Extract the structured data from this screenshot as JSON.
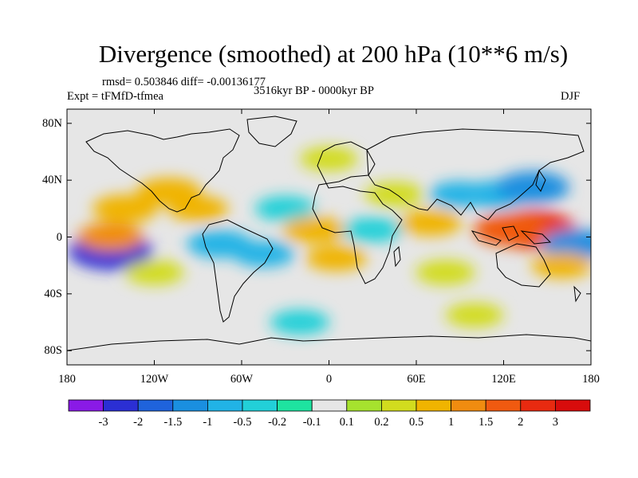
{
  "title": "Divergence (smoothed) at 200 hPa (10**6 m/s)",
  "stats": "rmsd= 0.503846 diff= -0.00136177",
  "period": "3516kyr BP - 0000kyr BP",
  "experiment": "Expt = tFMfD-tfmea",
  "season": "DJF",
  "axes": {
    "lon_ticks": [
      "180",
      "120W",
      "60W",
      "0",
      "60E",
      "120E",
      "180"
    ],
    "lat_ticks": [
      "80N",
      "40N",
      "0",
      "40S",
      "80S"
    ]
  },
  "colorbar": {
    "labels": [
      "-3",
      "-2",
      "-1.5",
      "-1",
      "-0.5",
      "-0.2",
      "-0.1",
      "0.1",
      "0.2",
      "0.5",
      "1",
      "1.5",
      "2",
      "3"
    ],
    "colors": [
      "#8a1ae6",
      "#2b2fd4",
      "#1f63dc",
      "#1a8fe0",
      "#21b3e6",
      "#22d0d8",
      "#1ee3a0",
      "#e6e6e6",
      "#a6e22e",
      "#d2dc1e",
      "#f0b400",
      "#f08c10",
      "#f05a10",
      "#e82a10",
      "#d80c0c"
    ]
  },
  "chart_data": {
    "type": "heatmap",
    "title": "Divergence (smoothed) at 200 hPa (10**6 m/s)",
    "x_range_deg": [
      -180,
      180
    ],
    "y_range_deg": [
      -90,
      90
    ],
    "levels": [
      -3,
      -2,
      -1.5,
      -1,
      -0.5,
      -0.2,
      -0.1,
      0.1,
      0.2,
      0.5,
      1,
      1.5,
      2,
      3
    ],
    "field_blobs": [
      {
        "lon": -150,
        "lat": -10,
        "value": -2.3
      },
      {
        "lon": -140,
        "lat": 20,
        "value": 0.9
      },
      {
        "lon": -150,
        "lat": 0,
        "value": 1.0
      },
      {
        "lon": -110,
        "lat": 32,
        "value": 0.8
      },
      {
        "lon": -75,
        "lat": -5,
        "value": -0.9
      },
      {
        "lon": -45,
        "lat": -12,
        "value": -0.6
      },
      {
        "lon": -30,
        "lat": 20,
        "value": -0.5
      },
      {
        "lon": -10,
        "lat": 5,
        "value": 0.7
      },
      {
        "lon": 5,
        "lat": -15,
        "value": 0.5
      },
      {
        "lon": 30,
        "lat": 5,
        "value": -0.4
      },
      {
        "lon": 45,
        "lat": 30,
        "value": 0.4
      },
      {
        "lon": 70,
        "lat": 10,
        "value": 0.6
      },
      {
        "lon": 80,
        "lat": -25,
        "value": 0.4
      },
      {
        "lon": 90,
        "lat": 30,
        "value": -0.6
      },
      {
        "lon": 115,
        "lat": 30,
        "value": -0.9
      },
      {
        "lon": 140,
        "lat": 35,
        "value": -1.5
      },
      {
        "lon": 140,
        "lat": 5,
        "value": 2.6
      },
      {
        "lon": 125,
        "lat": 5,
        "value": 1.6
      },
      {
        "lon": 170,
        "lat": -5,
        "value": -1.2
      },
      {
        "lon": 160,
        "lat": -20,
        "value": 0.5
      },
      {
        "lon": -120,
        "lat": -25,
        "value": 0.4
      },
      {
        "lon": -90,
        "lat": 20,
        "value": 0.5
      },
      {
        "lon": 0,
        "lat": 55,
        "value": 0.3
      },
      {
        "lon": 100,
        "lat": -55,
        "value": 0.3
      },
      {
        "lon": -20,
        "lat": -60,
        "value": -0.4
      }
    ]
  }
}
